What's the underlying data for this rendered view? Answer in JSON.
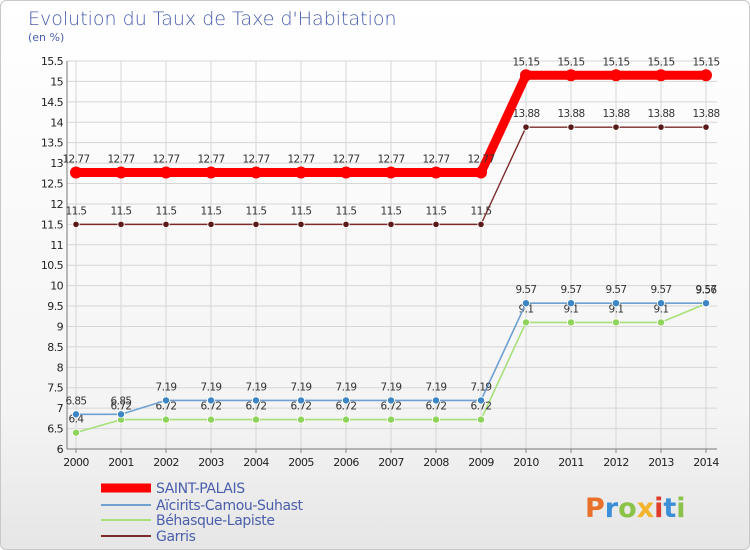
{
  "chart_data": {
    "type": "line",
    "title": "Evolution du Taux de Taxe d'Habitation",
    "subtitle": "(en %)",
    "xlabel": "",
    "ylabel": "(en %)",
    "ylim": [
      6,
      15.5
    ],
    "y_ticks": [
      "6",
      "6.5",
      "7",
      "7.5",
      "8",
      "8.5",
      "9",
      "9.5",
      "10",
      "10.5",
      "11",
      "11.5",
      "12",
      "12.5",
      "13",
      "13.5",
      "14",
      "14.5",
      "15",
      "15.5"
    ],
    "categories": [
      "2000",
      "2001",
      "2002",
      "2003",
      "2004",
      "2005",
      "2006",
      "2007",
      "2008",
      "2009",
      "2010",
      "2011",
      "2012",
      "2013",
      "2014"
    ],
    "grid": true,
    "legend_position": "bottom-left",
    "series": [
      {
        "name": "SAINT-PALAIS",
        "color": "#ff0000",
        "values": [
          12.77,
          12.77,
          12.77,
          12.77,
          12.77,
          12.77,
          12.77,
          12.77,
          12.77,
          12.77,
          15.15,
          15.15,
          15.15,
          15.15,
          15.15
        ],
        "labels": [
          "12.77",
          "12.77",
          "12.77",
          "12.77",
          "12.77",
          "12.77",
          "12.77",
          "12.77",
          "12.77",
          "12.77",
          "15.15",
          "15.15",
          "15.15",
          "15.15",
          "15.15"
        ]
      },
      {
        "name": "Aïcirits-Camou-Suhast",
        "color": "#6ea0d2",
        "values": [
          6.85,
          6.85,
          7.19,
          7.19,
          7.19,
          7.19,
          7.19,
          7.19,
          7.19,
          7.19,
          9.57,
          9.57,
          9.57,
          9.57,
          9.57
        ],
        "labels": [
          "6.85",
          "6.85",
          "7.19",
          "7.19",
          "7.19",
          "7.19",
          "7.19",
          "7.19",
          "7.19",
          "7.19",
          "9.57",
          "9.57",
          "9.57",
          "9.57",
          "9.57"
        ]
      },
      {
        "name": "Béhasque-Lapiste",
        "color": "#a6e07a",
        "values": [
          6.4,
          6.72,
          6.72,
          6.72,
          6.72,
          6.72,
          6.72,
          6.72,
          6.72,
          6.72,
          9.1,
          9.1,
          9.1,
          9.1,
          9.56
        ],
        "labels": [
          "6.4",
          "6.72",
          "6.72",
          "6.72",
          "6.72",
          "6.72",
          "6.72",
          "6.72",
          "6.72",
          "6.72",
          "9.1",
          "9.1",
          "9.1",
          "9.1",
          "9.56"
        ]
      },
      {
        "name": "Garris",
        "color": "#7a2a2a",
        "values": [
          11.5,
          11.5,
          11.5,
          11.5,
          11.5,
          11.5,
          11.5,
          11.5,
          11.5,
          11.5,
          13.88,
          13.88,
          13.88,
          13.88,
          13.88
        ],
        "labels": [
          "11.5",
          "11.5",
          "11.5",
          "11.5",
          "11.5",
          "11.5",
          "11.5",
          "11.5",
          "11.5",
          "11.5",
          "13.88",
          "13.88",
          "13.88",
          "13.88",
          "13.88"
        ]
      }
    ]
  },
  "branding": {
    "logo_text": "Proxiti",
    "logo_colors": [
      "#e8702a",
      "#3a8fd8",
      "#8bc34a",
      "#f2b42c",
      "#e03c2c",
      "#3a8fd8",
      "#8bc34a"
    ]
  }
}
